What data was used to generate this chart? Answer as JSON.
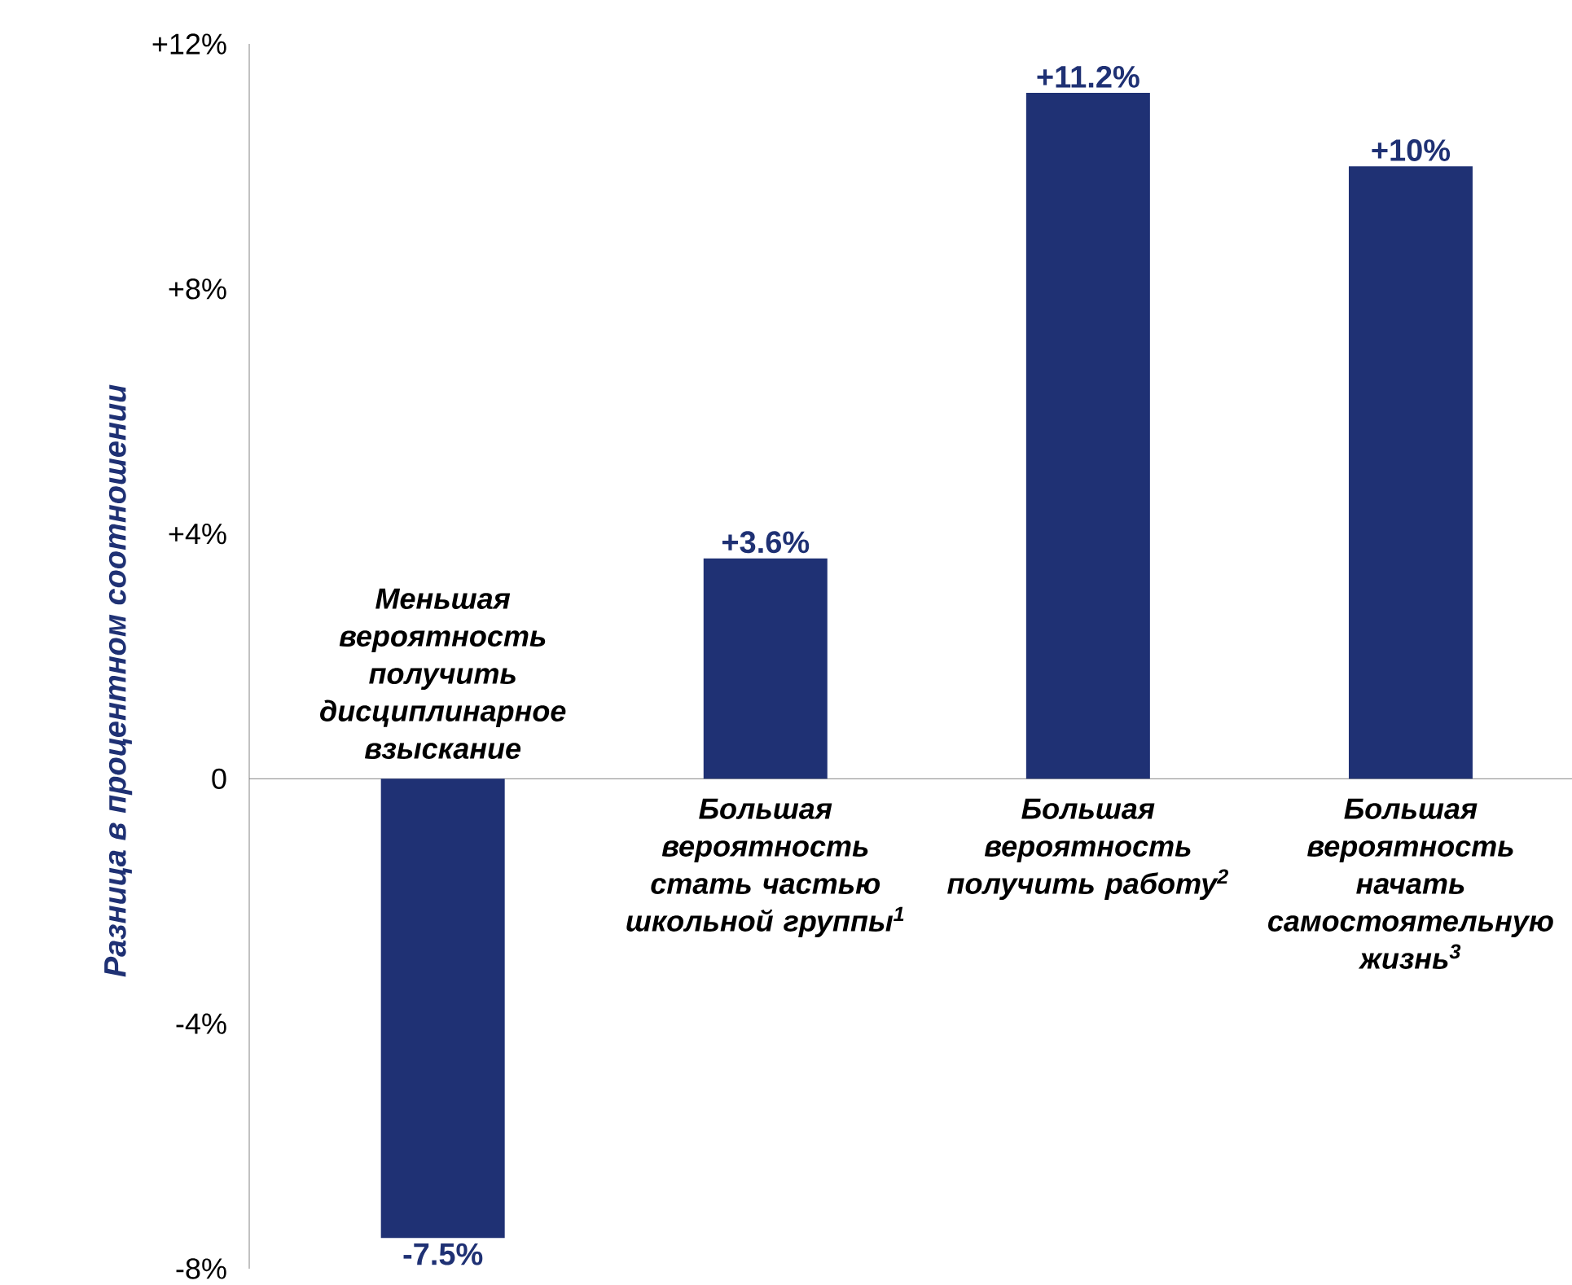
{
  "chart_data": {
    "type": "bar",
    "ylabel": "Разница в процентном соотношении",
    "categories": [
      "Меньшая вероятность получить дисциплинарное взыскание",
      "Большая вероятность стать частью школьной группы$^{1}$",
      "Большая вероятность получить работу$^{2}$",
      "Большая вероятность начать самостоятельную жизнь$^{3}$"
    ],
    "values": [
      -7.5,
      3.6,
      11.2,
      10
    ],
    "value_labels": [
      "-7.5%",
      "+3.6%",
      "+11.2%",
      "+10%"
    ],
    "color": "#1f3174",
    "ylim": [
      -8,
      12
    ],
    "yticks": [
      {
        "value": -8,
        "label": "-8%"
      },
      {
        "value": -4,
        "label": "-4%"
      },
      {
        "value": 0,
        "label": "0"
      },
      {
        "value": 4,
        "label": "+4%"
      },
      {
        "value": 8,
        "label": "+8%"
      },
      {
        "value": 12,
        "label": "+12%"
      }
    ]
  }
}
